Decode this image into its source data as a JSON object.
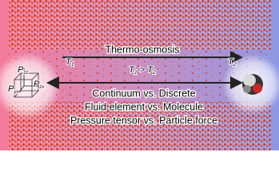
{
  "graphic": {
    "process": "Thermo-osmosis",
    "hot": {
      "symbol": "T",
      "sub": "1"
    },
    "cold": {
      "symbol": "T",
      "sub": "2"
    },
    "condition": {
      "left": "T",
      "left_sub": "1",
      "op": " > ",
      "right": "T",
      "right_sub": "2"
    },
    "comparisons": [
      "Continuum vs. Discrete",
      "Fluid element vs. Molecule",
      "Pressure tensor vs. Particle force"
    ],
    "tensor_labels": [
      {
        "symbol": "P",
        "sub": "zz"
      },
      {
        "symbol": "P",
        "sub": "zx"
      },
      {
        "symbol": "P",
        "sub": "yx"
      }
    ]
  }
}
